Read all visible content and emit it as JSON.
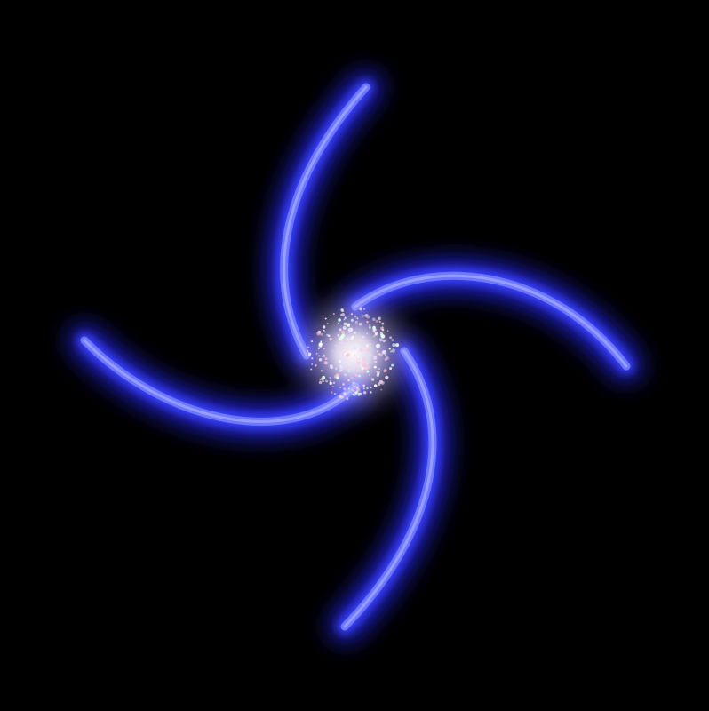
{
  "scene": {
    "background_color": "#000000",
    "arm_count": 4,
    "arm_color": "#5a64ff",
    "arm_glow_color": "#2a2cff",
    "arm_highlight_color": "#b8beff",
    "core_color": "#f4eefc",
    "core_particle_colors": [
      "#ffd6ec",
      "#d8ffe8",
      "#e8e0ff",
      "#ffffff",
      "#ffc0d8"
    ]
  }
}
